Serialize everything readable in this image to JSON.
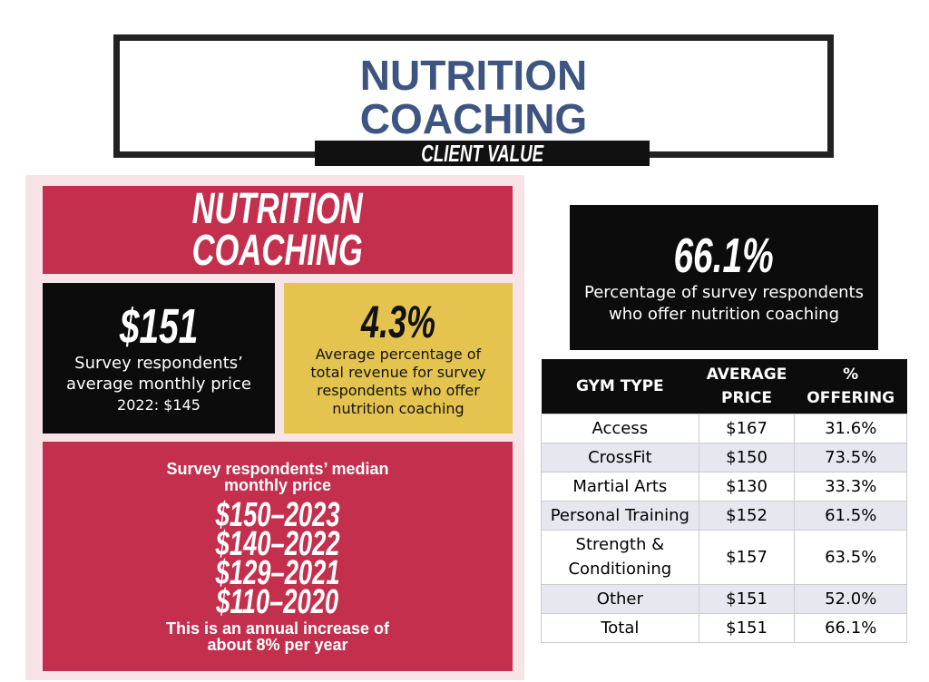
{
  "header": {
    "title_lines": [
      "NUTRITION",
      "COACHING"
    ],
    "subtitle": "CLIENT VALUE"
  },
  "panel": {
    "title_lines": [
      "NUTRITION",
      "COACHING"
    ],
    "avg_price": {
      "value": "$151",
      "desc": "Survey respondents’ average monthly price",
      "prior": "2022: $145"
    },
    "revenue": {
      "value": "4.3%",
      "desc": "Average percentage of total revenue for survey respondents who offer nutrition coaching"
    },
    "median": {
      "heading": "Survey respondents’ median monthly price",
      "lines": [
        "$150–2023",
        "$140–2022",
        "$129–2021",
        "$110–2020"
      ],
      "note": "This is an annual increase of about 8% per year"
    }
  },
  "offering": {
    "value": "66.1%",
    "desc": "Percentage of survey respondents who offer nutrition coaching"
  },
  "table": {
    "headers": [
      [
        "GYM TYPE"
      ],
      [
        "AVERAGE",
        "PRICE"
      ],
      [
        "%",
        "OFFERING"
      ]
    ],
    "rows": [
      [
        "Access",
        "$167",
        "31.6%"
      ],
      [
        "CrossFit",
        "$150",
        "73.5%"
      ],
      [
        "Martial Arts",
        "$130",
        "33.3%"
      ],
      [
        "Personal Training",
        "$152",
        "61.5%"
      ],
      [
        "Strength & Conditioning",
        "$157",
        "63.5%"
      ],
      [
        "Other",
        "$151",
        "52.0%"
      ],
      [
        "Total",
        "$151",
        "66.1%"
      ]
    ]
  }
}
